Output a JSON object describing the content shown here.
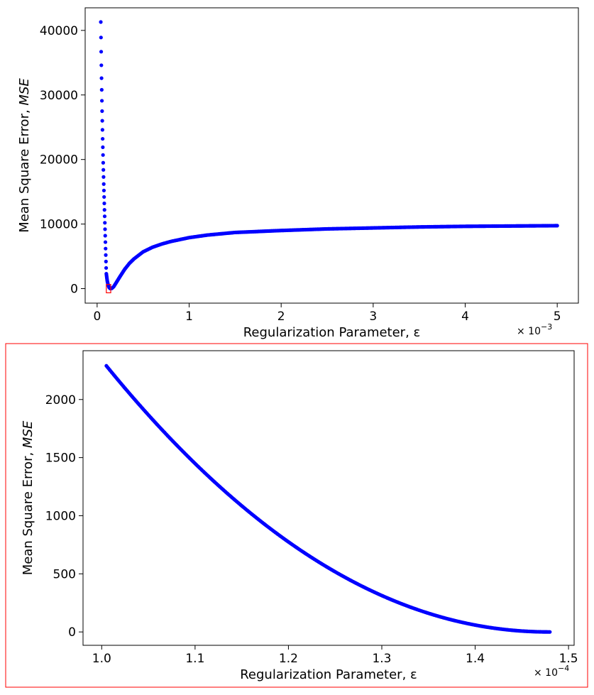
{
  "chart_data": [
    {
      "type": "scatter",
      "title": "",
      "xlabel": "Regularization Parameter, ε",
      "ylabel_prefix": "Mean Square Error, ",
      "ylabel_var": "MSE",
      "x_offset_text": "× 10",
      "x_offset_exp": "−3",
      "x_scale": 0.001,
      "xlim": [
        -0.00013,
        0.00523
      ],
      "ylim": [
        -2250,
        43500
      ],
      "xticks": [
        0,
        1,
        2,
        3,
        4,
        5
      ],
      "xtick_labels": [
        "0",
        "1",
        "2",
        "3",
        "4",
        "5"
      ],
      "yticks": [
        0,
        10000,
        20000,
        30000,
        40000
      ],
      "ytick_labels": [
        "0",
        "10000",
        "20000",
        "30000",
        "40000"
      ],
      "grid": false,
      "legend": "none",
      "series": [
        {
          "color": "#0000ff",
          "points": [
            [
              4e-05,
              41300
            ],
            [
              4.2e-05,
              38900
            ],
            [
              4.4e-05,
              36700
            ],
            [
              4.6e-05,
              34600
            ],
            [
              4.8e-05,
              32600
            ],
            [
              5e-05,
              30800
            ],
            [
              5.2e-05,
              29100
            ],
            [
              5.4e-05,
              27500
            ],
            [
              5.6e-05,
              26000
            ],
            [
              5.8e-05,
              24600
            ],
            [
              6e-05,
              23200
            ],
            [
              6.2e-05,
              21900
            ],
            [
              6.4e-05,
              20700
            ],
            [
              6.6e-05,
              19500
            ],
            [
              6.8e-05,
              18400
            ],
            [
              7e-05,
              17300
            ],
            [
              7.2e-05,
              16200
            ],
            [
              7.4e-05,
              15200
            ],
            [
              7.6e-05,
              14200
            ],
            [
              7.8e-05,
              13200
            ],
            [
              8e-05,
              12200
            ],
            [
              8.2e-05,
              11200
            ],
            [
              8.4e-05,
              10200
            ],
            [
              8.6e-05,
              9200
            ],
            [
              8.8e-05,
              8200
            ],
            [
              9e-05,
              7200
            ],
            [
              9.2e-05,
              6200
            ],
            [
              9.4e-05,
              5200
            ],
            [
              9.6e-05,
              4200
            ],
            [
              9.8e-05,
              3200
            ],
            [
              0.0001,
              2300
            ],
            [
              0.00011,
              1200
            ],
            [
              0.00012,
              550
            ],
            [
              0.00013,
              180
            ],
            [
              0.00014,
              30
            ],
            [
              0.000148,
              5
            ],
            [
              0.00016,
              40
            ],
            [
              0.00018,
              300
            ],
            [
              0.0002,
              750
            ],
            [
              0.00025,
              1900
            ],
            [
              0.0003,
              3000
            ],
            [
              0.00035,
              3900
            ],
            [
              0.0004,
              4600
            ],
            [
              0.0005,
              5700
            ],
            [
              0.0006,
              6400
            ],
            [
              0.0007,
              6900
            ],
            [
              0.0008,
              7300
            ],
            [
              0.001,
              7900
            ],
            [
              0.0012,
              8300
            ],
            [
              0.0015,
              8700
            ],
            [
              0.002,
              9000
            ],
            [
              0.0025,
              9250
            ],
            [
              0.003,
              9400
            ],
            [
              0.0035,
              9550
            ],
            [
              0.004,
              9650
            ],
            [
              0.0045,
              9700
            ],
            [
              0.005,
              9750
            ]
          ]
        }
      ],
      "annotation": {
        "type": "zoom-box",
        "color": "#ff0000",
        "x_range": [
          0.0001,
          0.000148
        ],
        "y_range": [
          -650,
          650
        ]
      }
    },
    {
      "type": "scatter",
      "title": "",
      "xlabel": "Regularization Parameter, ε",
      "ylabel_prefix": "Mean Square Error, ",
      "ylabel_var": "MSE",
      "x_offset_text": "× 10",
      "x_offset_exp": "−4",
      "x_scale": 0.0001,
      "xlim": [
        9.8e-05,
        0.0001506
      ],
      "ylim": [
        -115,
        2420
      ],
      "xticks": [
        1.0,
        1.1,
        1.2,
        1.3,
        1.4,
        1.5
      ],
      "xtick_labels": [
        "1.0",
        "1.1",
        "1.2",
        "1.3",
        "1.4",
        "1.5"
      ],
      "yticks": [
        0,
        500,
        1000,
        1500,
        2000
      ],
      "ytick_labels": [
        "0",
        "500",
        "1000",
        "1500",
        "2000"
      ],
      "grid": false,
      "legend": "none",
      "frame_color": "#ff0000",
      "series": [
        {
          "color": "#0000ff",
          "curve": "quadratic-approach",
          "x_start": 0.0001005,
          "x_end": 0.000148,
          "y_start": 2290,
          "y_end": 0
        }
      ]
    }
  ]
}
